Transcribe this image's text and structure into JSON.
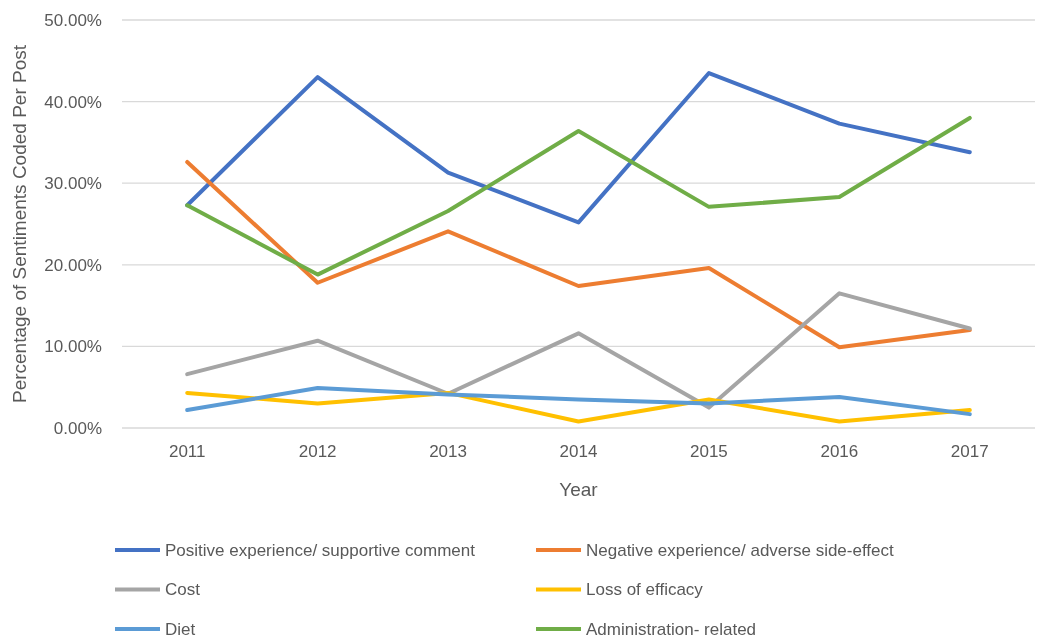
{
  "chart_data": {
    "type": "line",
    "xlabel": "Year",
    "ylabel": "Percentage of Sentiments Coded Per Post",
    "categories": [
      "2011",
      "2012",
      "2013",
      "2014",
      "2015",
      "2016",
      "2017"
    ],
    "ylim": [
      0,
      50
    ],
    "yticks": [
      {
        "value": 0,
        "label": "0.00%"
      },
      {
        "value": 10,
        "label": "10.00%"
      },
      {
        "value": 20,
        "label": "20.00%"
      },
      {
        "value": 30,
        "label": "30.00%"
      },
      {
        "value": 40,
        "label": "40.00%"
      },
      {
        "value": 50,
        "label": "50.00%"
      }
    ],
    "grid": "y",
    "legend": "bottom",
    "marker": "none",
    "line_style": "solid",
    "series": [
      {
        "name": "Positive experience/ supportive comment",
        "color": "#4472c4",
        "values": [
          27.3,
          43.0,
          31.3,
          25.2,
          43.5,
          37.3,
          33.8
        ]
      },
      {
        "name": "Negative experience/ adverse side-effect",
        "color": "#ed7d31",
        "values": [
          32.6,
          17.8,
          24.1,
          17.4,
          19.6,
          9.9,
          12.0
        ]
      },
      {
        "name": "Cost",
        "color": "#a5a5a5",
        "values": [
          6.6,
          10.7,
          4.2,
          11.6,
          2.5,
          16.5,
          12.2
        ]
      },
      {
        "name": "Loss of efficacy",
        "color": "#ffc000",
        "values": [
          4.3,
          3.0,
          4.3,
          0.8,
          3.5,
          0.8,
          2.2
        ]
      },
      {
        "name": "Diet",
        "color": "#5b9bd5",
        "values": [
          2.2,
          4.9,
          4.1,
          3.5,
          3.0,
          3.8,
          1.7
        ]
      },
      {
        "name": "Administration- related",
        "color": "#70ad47",
        "values": [
          27.3,
          18.8,
          26.6,
          36.4,
          27.1,
          28.3,
          38.0
        ]
      }
    ]
  }
}
